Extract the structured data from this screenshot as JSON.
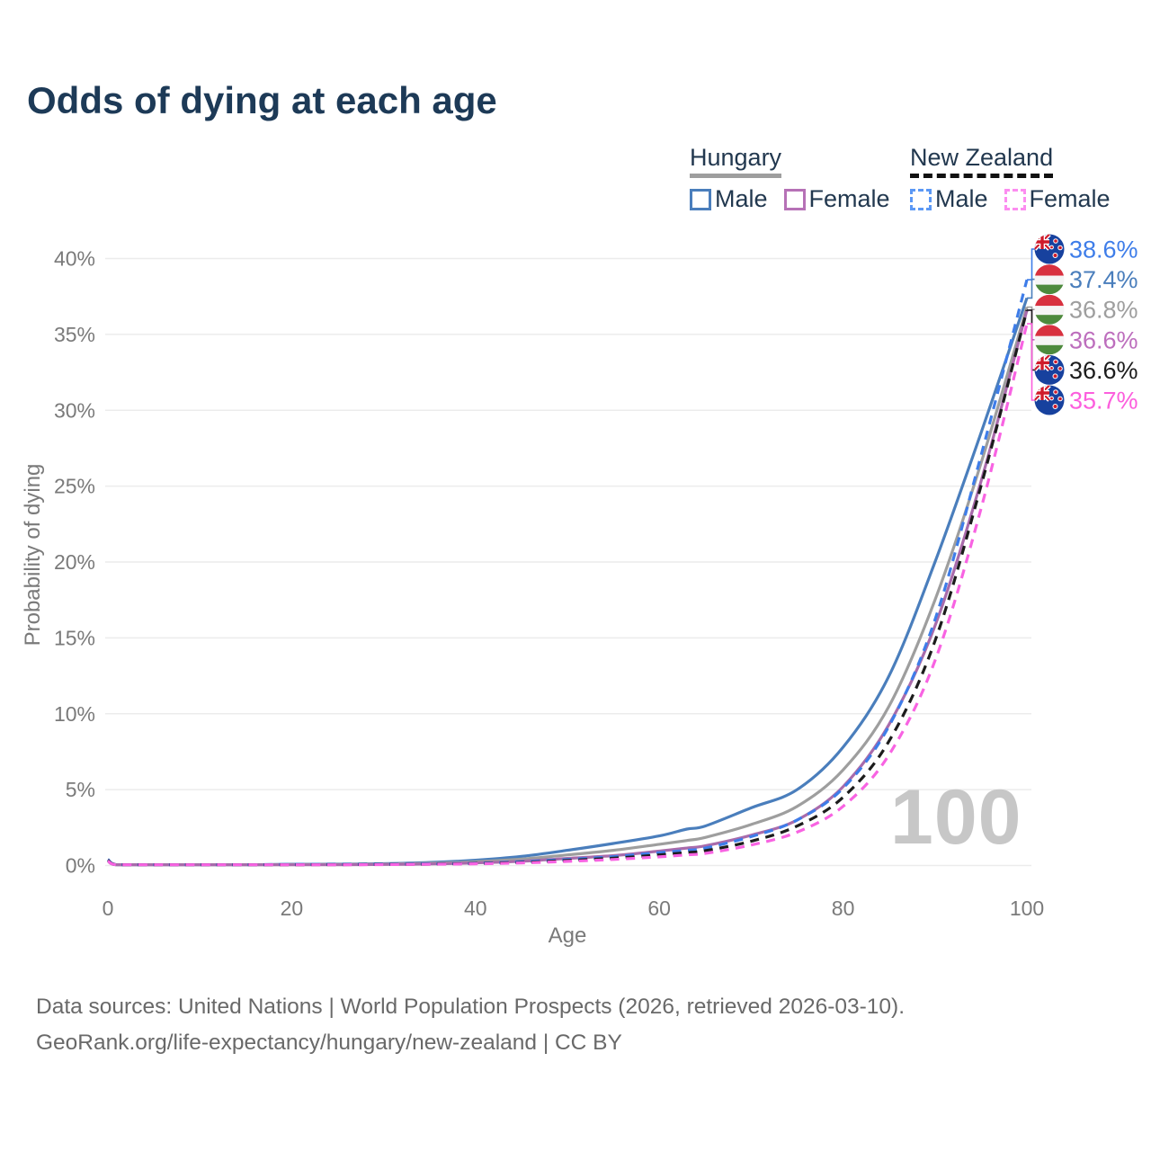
{
  "title": "Odds of dying at each age",
  "legend": {
    "groups": [
      {
        "label": "Hungary",
        "line_style": "solid",
        "underline_color": "#9e9e9e",
        "items": [
          {
            "label": "Male",
            "color": "#4a7ebc",
            "dashed": false
          },
          {
            "label": "Female",
            "color": "#b671b6",
            "dashed": false
          }
        ]
      },
      {
        "label": "New Zealand",
        "line_style": "dashed",
        "underline_color": "#111111",
        "items": [
          {
            "label": "Male",
            "color": "#5b98f5",
            "dashed": true
          },
          {
            "label": "Female",
            "color": "#fc8df0",
            "dashed": true
          }
        ]
      }
    ]
  },
  "chart_data": {
    "type": "line",
    "title": "Odds of dying at each age",
    "xlabel": "Age",
    "ylabel": "Probability of dying",
    "x_ticks": [
      0,
      20,
      40,
      60,
      80,
      100
    ],
    "y_ticks": [
      0,
      5,
      10,
      15,
      20,
      25,
      30,
      35,
      40
    ],
    "y_tick_suffix": "%",
    "xlim": [
      0,
      100
    ],
    "ylim": [
      0,
      40
    ],
    "grid": true,
    "legend_position": "top-right",
    "watermark": "100",
    "ages": [
      0,
      1,
      5,
      10,
      15,
      20,
      25,
      30,
      35,
      40,
      45,
      50,
      55,
      60,
      63,
      65,
      70,
      75,
      80,
      85,
      90,
      95,
      100
    ],
    "series": [
      {
        "id": "hu_male",
        "name": "Hungary Male",
        "color": "#4a7ebc",
        "dashed": false,
        "values": [
          0.35,
          0.03,
          0.01,
          0.01,
          0.04,
          0.08,
          0.09,
          0.12,
          0.2,
          0.35,
          0.6,
          1.0,
          1.45,
          1.95,
          2.4,
          2.6,
          3.8,
          5.0,
          7.8,
          12.5,
          20.0,
          28.5,
          37.4
        ]
      },
      {
        "id": "hu_total",
        "name": "Hungary",
        "color": "#9e9e9e",
        "dashed": false,
        "values": [
          0.3,
          0.03,
          0.01,
          0.01,
          0.03,
          0.06,
          0.07,
          0.09,
          0.15,
          0.25,
          0.42,
          0.7,
          1.0,
          1.4,
          1.65,
          1.85,
          2.7,
          3.9,
          6.3,
          10.5,
          17.5,
          26.5,
          36.8
        ]
      },
      {
        "id": "hu_female",
        "name": "Hungary Female",
        "color": "#a96bab",
        "dashed": false,
        "values": [
          0.28,
          0.02,
          0.01,
          0.01,
          0.02,
          0.04,
          0.05,
          0.07,
          0.1,
          0.17,
          0.28,
          0.47,
          0.65,
          0.95,
          1.15,
          1.3,
          2.0,
          3.0,
          5.2,
          9.3,
          15.8,
          25.3,
          36.6
        ]
      },
      {
        "id": "nz_male",
        "name": "New Zealand Male",
        "color": "#3e7de9",
        "dashed": true,
        "values": [
          0.4,
          0.03,
          0.01,
          0.01,
          0.04,
          0.07,
          0.08,
          0.09,
          0.11,
          0.15,
          0.25,
          0.4,
          0.58,
          0.85,
          1.0,
          1.15,
          1.9,
          3.0,
          5.1,
          9.2,
          16.2,
          27.0,
          38.6
        ]
      },
      {
        "id": "nz_total",
        "name": "New Zealand",
        "color": "#1c1c1c",
        "dashed": true,
        "values": [
          0.35,
          0.03,
          0.01,
          0.01,
          0.03,
          0.05,
          0.06,
          0.07,
          0.09,
          0.13,
          0.2,
          0.33,
          0.48,
          0.7,
          0.85,
          0.98,
          1.6,
          2.6,
          4.5,
          8.2,
          14.8,
          25.0,
          36.6
        ]
      },
      {
        "id": "nz_female",
        "name": "New Zealand Female",
        "color": "#f863e2",
        "dashed": true,
        "values": [
          0.3,
          0.02,
          0.01,
          0.01,
          0.02,
          0.04,
          0.05,
          0.06,
          0.08,
          0.11,
          0.17,
          0.27,
          0.4,
          0.57,
          0.7,
          0.8,
          1.35,
          2.2,
          3.9,
          7.3,
          13.5,
          23.5,
          35.7
        ]
      }
    ],
    "end_labels": [
      {
        "series": "nz_male",
        "text": "38.6%",
        "color": "#3e7de9",
        "flag": "nz"
      },
      {
        "series": "hu_male",
        "text": "37.4%",
        "color": "#4a7ebc",
        "flag": "hu"
      },
      {
        "series": "hu_total",
        "text": "36.8%",
        "color": "#9e9e9e",
        "flag": "hu"
      },
      {
        "series": "hu_female",
        "text": "36.6%",
        "color": "#bd6ebd",
        "flag": "hu"
      },
      {
        "series": "nz_total",
        "text": "36.6%",
        "color": "#1c1c1c",
        "flag": "nz"
      },
      {
        "series": "nz_female",
        "text": "35.7%",
        "color": "#fc5edd",
        "flag": "nz"
      }
    ]
  },
  "footer": {
    "line1": "Data sources: United Nations | World Population Prospects (2026, retrieved 2026-03-10).",
    "line2": "GeoRank.org/life-expectancy/hungary/new-zealand | CC BY"
  }
}
